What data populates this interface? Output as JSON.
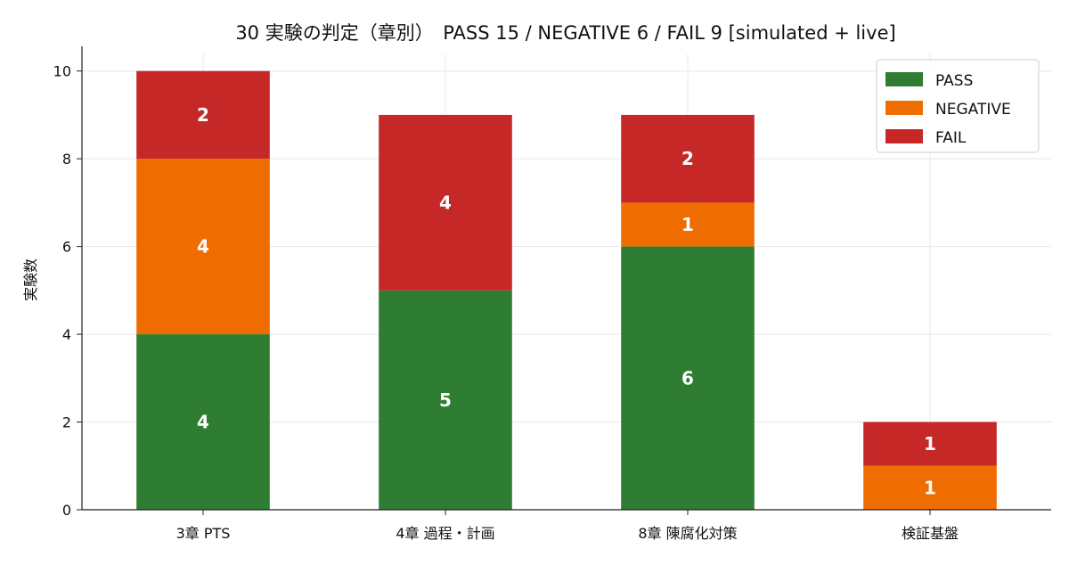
{
  "chart_data": {
    "type": "bar",
    "stacked": true,
    "title": "30 実験の判定（章別）　PASS 15 / NEGATIVE 6 / FAIL 9  [simulated + live]",
    "xlabel": "",
    "ylabel": "実験数",
    "ylim": [
      0,
      10.4
    ],
    "yticks": [
      0,
      2,
      4,
      6,
      8,
      10
    ],
    "grid": true,
    "legend_position": "top-right",
    "categories": [
      "3章 PTS",
      "4章 過程・計画",
      "8章 陳腐化対策",
      "検証基盤"
    ],
    "series": [
      {
        "name": "PASS",
        "color": "#2e7d32",
        "values": [
          4,
          5,
          6,
          0
        ]
      },
      {
        "name": "NEGATIVE",
        "color": "#ef6c00",
        "values": [
          4,
          0,
          1,
          1
        ]
      },
      {
        "name": "FAIL",
        "color": "#c62828",
        "values": [
          2,
          4,
          2,
          1
        ]
      }
    ]
  }
}
